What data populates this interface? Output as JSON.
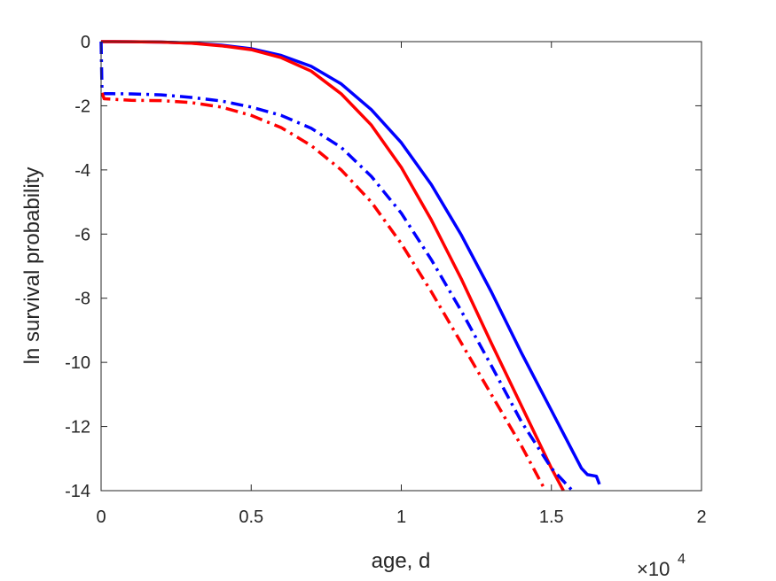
{
  "chart_data": {
    "type": "line",
    "title": "",
    "xlabel": "age, d",
    "ylabel": "ln survival probability",
    "x_multiplier_base": "×10",
    "x_multiplier_exp": "4",
    "xlim": [
      0,
      20000
    ],
    "ylim": [
      -14,
      0
    ],
    "xticks": [
      0,
      5000,
      10000,
      15000,
      20000
    ],
    "xtick_labels": [
      "0",
      "0.5",
      "1",
      "1.5",
      "2"
    ],
    "yticks": [
      0,
      -2,
      -4,
      -6,
      -8,
      -10,
      -12,
      -14
    ],
    "ytick_labels": [
      "0",
      "-2",
      "-4",
      "-6",
      "-8",
      "-10",
      "-12",
      "-14"
    ],
    "grid": false,
    "legend": "none",
    "series": [
      {
        "color": "#0000ff",
        "style": "solid",
        "points": [
          [
            0,
            0
          ],
          [
            1000,
            -0.003
          ],
          [
            2000,
            -0.015
          ],
          [
            3000,
            -0.045
          ],
          [
            4000,
            -0.11
          ],
          [
            5000,
            -0.22
          ],
          [
            6000,
            -0.43
          ],
          [
            7000,
            -0.77
          ],
          [
            8000,
            -1.32
          ],
          [
            9000,
            -2.12
          ],
          [
            10000,
            -3.15
          ],
          [
            11000,
            -4.46
          ],
          [
            12000,
            -6.03
          ],
          [
            13000,
            -7.8
          ],
          [
            14000,
            -9.7
          ],
          [
            15000,
            -11.5
          ],
          [
            16000,
            -13.3
          ],
          [
            16200,
            -13.5
          ],
          [
            16500,
            -13.55
          ],
          [
            16600,
            -13.8
          ]
        ]
      },
      {
        "color": "#ff0000",
        "style": "solid",
        "points": [
          [
            0,
            0
          ],
          [
            1000,
            -0.003
          ],
          [
            2000,
            -0.015
          ],
          [
            3000,
            -0.05
          ],
          [
            4000,
            -0.13
          ],
          [
            5000,
            -0.25
          ],
          [
            6000,
            -0.5
          ],
          [
            7000,
            -0.92
          ],
          [
            8000,
            -1.63
          ],
          [
            9000,
            -2.6
          ],
          [
            10000,
            -3.92
          ],
          [
            11000,
            -5.56
          ],
          [
            12000,
            -7.4
          ],
          [
            13000,
            -9.4
          ],
          [
            14000,
            -11.35
          ],
          [
            15000,
            -13.3
          ],
          [
            15400,
            -14.0
          ]
        ]
      },
      {
        "color": "#0000ff",
        "style": "dashdot",
        "points": [
          [
            0,
            0
          ],
          [
            30,
            -1.5
          ],
          [
            100,
            -1.62
          ],
          [
            1000,
            -1.63
          ],
          [
            2000,
            -1.66
          ],
          [
            3000,
            -1.74
          ],
          [
            4000,
            -1.85
          ],
          [
            5000,
            -2.04
          ],
          [
            6000,
            -2.3
          ],
          [
            7000,
            -2.7
          ],
          [
            8000,
            -3.3
          ],
          [
            9000,
            -4.2
          ],
          [
            10000,
            -5.35
          ],
          [
            11000,
            -6.8
          ],
          [
            12000,
            -8.4
          ],
          [
            13000,
            -10.1
          ],
          [
            14000,
            -11.85
          ],
          [
            15000,
            -13.3
          ],
          [
            15700,
            -14.0
          ]
        ]
      },
      {
        "color": "#ff0000",
        "style": "dashdot",
        "points": [
          [
            30,
            -1.6
          ],
          [
            100,
            -1.78
          ],
          [
            1000,
            -1.83
          ],
          [
            2000,
            -1.84
          ],
          [
            3000,
            -1.9
          ],
          [
            4000,
            -2.04
          ],
          [
            5000,
            -2.3
          ],
          [
            6000,
            -2.68
          ],
          [
            7000,
            -3.24
          ],
          [
            8000,
            -4.0
          ],
          [
            9000,
            -5.0
          ],
          [
            10000,
            -6.3
          ],
          [
            11000,
            -7.8
          ],
          [
            12000,
            -9.4
          ],
          [
            13000,
            -11.0
          ],
          [
            14000,
            -12.6
          ],
          [
            14800,
            -14.0
          ]
        ]
      }
    ]
  }
}
